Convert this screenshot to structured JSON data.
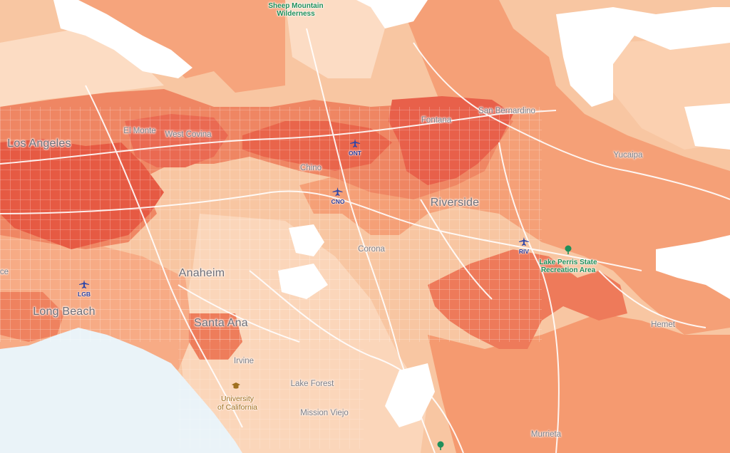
{
  "map": {
    "colors": {
      "ocean": "#eaf3f8",
      "light": "#fbd8bd",
      "mid": "#f6a27a",
      "strong": "#ee7f5c",
      "intense": "#e5533e",
      "white": "#ffffff",
      "road": "#ffffff",
      "airport": "#3047a8",
      "park": "#1f8f5a"
    },
    "cities": {
      "los_angeles": "Los Angeles",
      "long_beach": "Long Beach",
      "anaheim": "Anaheim",
      "santa_ana": "Santa Ana",
      "riverside": "Riverside",
      "el_monte": "El Monte",
      "west_covina": "West Covina",
      "chino": "Chino",
      "fontana": "Fontana",
      "san_bernardino": "San Bernardino",
      "yucaipa": "Yucaipa",
      "corona": "Corona",
      "irvine": "Irvine",
      "lake_forest": "Lake Forest",
      "mission_viejo": "Mission Viejo",
      "hemet": "Hemet",
      "murrieta": "Murrieta",
      "partial_left": "ce"
    },
    "parks": {
      "sheep_mountain": "Sheep Mountain\nWilderness",
      "lake_perris": "Lake Perris State\nRecreation Area"
    },
    "university": "University\nof California",
    "airports": {
      "ont": "ONT",
      "cno": "CNO",
      "lgb": "LGB",
      "riv": "RIV"
    },
    "icons": [
      "airplane-icon",
      "tree-icon",
      "graduation-cap-icon"
    ]
  }
}
